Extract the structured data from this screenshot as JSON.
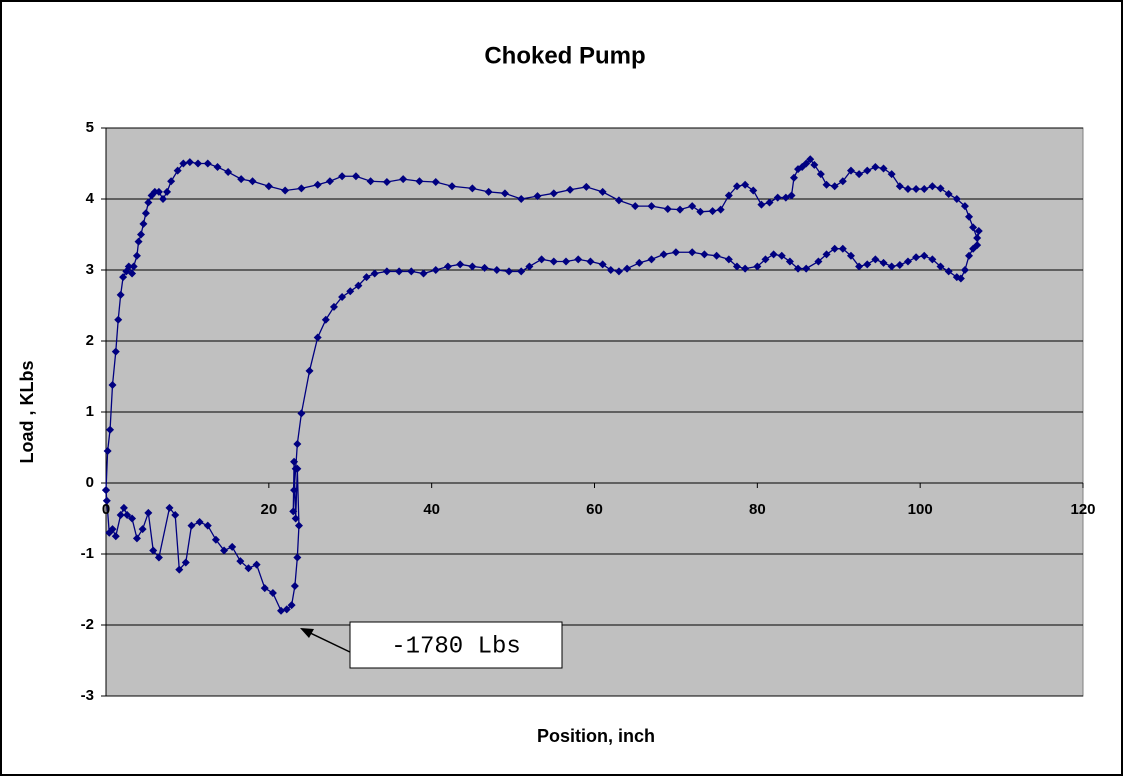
{
  "chart_data": {
    "type": "scatter",
    "title": "Choked Pump",
    "x_label": "Position, inch",
    "y_label": "Load , KLbs",
    "annotation": "-1780 Lbs",
    "xlim": [
      0,
      120
    ],
    "xticks": [
      0,
      20,
      40,
      60,
      80,
      100,
      120
    ],
    "ylim": [
      -3,
      5
    ],
    "yticks": [
      -3,
      -2,
      -1,
      0,
      1,
      2,
      3,
      4,
      5
    ],
    "grid": true,
    "series": [
      {
        "color": "#000080",
        "x": [
          0,
          0.2,
          0.5,
          0.8,
          1.2,
          1.5,
          1.8,
          2.1,
          2.5,
          2.8,
          3.2,
          3.4,
          3.8,
          4.0,
          4.3,
          4.6,
          4.9,
          5.2,
          5.6,
          6,
          6.5,
          7,
          7.5,
          8,
          8.8,
          9.5,
          10.3,
          11.3,
          12.5,
          13.7,
          15,
          16.6,
          18,
          20,
          22,
          24,
          26,
          27.5,
          29,
          30.7,
          32.5,
          34.5,
          36.5,
          38.5,
          40.5,
          42.5,
          45,
          47,
          49,
          51,
          53,
          55,
          57,
          59,
          61,
          63,
          65,
          67,
          69,
          70.5,
          72,
          73,
          74.5,
          75.5,
          76.5,
          77.5,
          78.5,
          79.5,
          80.5,
          81.5,
          82.5,
          83.5,
          84.2,
          84.5,
          85,
          85.5,
          86,
          86.5,
          87,
          87.8,
          88.5,
          89.5,
          90.5,
          91.5,
          92.5,
          93.5,
          94.5,
          95.5,
          96.5,
          97.5,
          98.5,
          99.5,
          100.5,
          101.5,
          102.5,
          103.5,
          104.5,
          105.5,
          106,
          106.5,
          107,
          107.2,
          107,
          106.5,
          106,
          105.5,
          105,
          104.5,
          103.5,
          102.5,
          101.5,
          100.5,
          99.5,
          98.5,
          97.5,
          96.5,
          95.5,
          94.5,
          93.5,
          92.5,
          91.5,
          90.5,
          89.5,
          88.5,
          87.5,
          86,
          85,
          84,
          83,
          82,
          81,
          80,
          78.5,
          77.5,
          76.5,
          75,
          73.5,
          72,
          70,
          68.5,
          67,
          65.5,
          64,
          63,
          62,
          61,
          59.5,
          58,
          56.5,
          55,
          53.5,
          52,
          51,
          49.5,
          48,
          46.5,
          45,
          43.5,
          42,
          40.5,
          39,
          37.5,
          36,
          34.5,
          33,
          32,
          31,
          30,
          29,
          28,
          27,
          26,
          25,
          24,
          23.5,
          23.3,
          23.1,
          23,
          23.1,
          23.3,
          23.5,
          23.7,
          23.5,
          23.2,
          22.8,
          22.2,
          21.5,
          20.5,
          19.5,
          18.5,
          17.5,
          16.5,
          15.5,
          14.5,
          13.5,
          12.5,
          11.5,
          10.5,
          9.8,
          9,
          8.5,
          7.8,
          6.5,
          5.8,
          5.2,
          4.5,
          3.8,
          3.2,
          2.6,
          2.2,
          1.8,
          1.2,
          0.8,
          0.4,
          0.1,
          0
        ],
        "values": [
          -0.1,
          0.45,
          0.75,
          1.38,
          1.85,
          2.3,
          2.65,
          2.9,
          2.98,
          3.05,
          2.95,
          3.05,
          3.2,
          3.4,
          3.5,
          3.65,
          3.8,
          3.95,
          4.05,
          4.1,
          4.1,
          4.0,
          4.1,
          4.25,
          4.4,
          4.5,
          4.52,
          4.5,
          4.5,
          4.45,
          4.38,
          4.28,
          4.25,
          4.18,
          4.12,
          4.15,
          4.2,
          4.25,
          4.32,
          4.32,
          4.25,
          4.24,
          4.28,
          4.25,
          4.24,
          4.18,
          4.15,
          4.1,
          4.08,
          4.0,
          4.04,
          4.08,
          4.13,
          4.17,
          4.1,
          3.98,
          3.9,
          3.9,
          3.86,
          3.85,
          3.9,
          3.82,
          3.83,
          3.85,
          4.05,
          4.18,
          4.2,
          4.12,
          3.92,
          3.95,
          4.02,
          4.02,
          4.05,
          4.3,
          4.42,
          4.45,
          4.5,
          4.56,
          4.48,
          4.35,
          4.2,
          4.18,
          4.25,
          4.4,
          4.35,
          4.4,
          4.45,
          4.43,
          4.35,
          4.18,
          4.14,
          4.14,
          4.14,
          4.18,
          4.15,
          4.07,
          4.0,
          3.9,
          3.75,
          3.6,
          3.45,
          3.55,
          3.35,
          3.3,
          3.2,
          3.0,
          2.88,
          2.9,
          2.98,
          3.05,
          3.15,
          3.2,
          3.18,
          3.12,
          3.07,
          3.05,
          3.1,
          3.15,
          3.08,
          3.05,
          3.2,
          3.3,
          3.3,
          3.22,
          3.12,
          3.02,
          3.02,
          3.12,
          3.2,
          3.22,
          3.15,
          3.05,
          3.02,
          3.05,
          3.15,
          3.2,
          3.22,
          3.25,
          3.25,
          3.22,
          3.15,
          3.1,
          3.02,
          2.98,
          3.0,
          3.08,
          3.12,
          3.15,
          3.12,
          3.12,
          3.15,
          3.05,
          2.98,
          2.98,
          3.0,
          3.03,
          3.05,
          3.08,
          3.05,
          3.0,
          2.95,
          2.98,
          2.98,
          2.98,
          2.95,
          2.9,
          2.78,
          2.7,
          2.62,
          2.48,
          2.3,
          2.05,
          1.58,
          0.98,
          0.55,
          0.2,
          -0.1,
          -0.4,
          0.3,
          -0.5,
          0.2,
          -0.6,
          -1.05,
          -1.45,
          -1.72,
          -1.78,
          -1.8,
          -1.55,
          -1.48,
          -1.15,
          -1.2,
          -1.1,
          -0.9,
          -0.95,
          -0.8,
          -0.6,
          -0.55,
          -0.6,
          -1.12,
          -1.22,
          -0.45,
          -0.35,
          -1.05,
          -0.95,
          -0.42,
          -0.65,
          -0.78,
          -0.5,
          -0.45,
          -0.35,
          -0.45,
          -0.75,
          -0.65,
          -0.7,
          -0.25,
          -0.1
        ]
      }
    ]
  }
}
